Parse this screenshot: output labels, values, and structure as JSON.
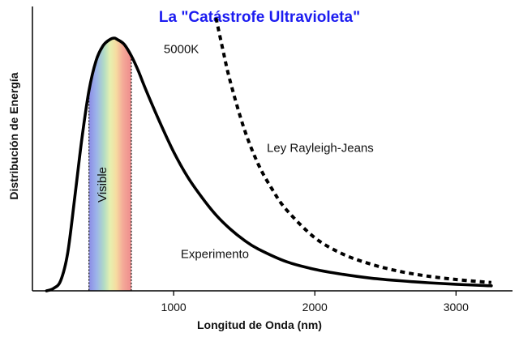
{
  "chart_data": {
    "type": "line",
    "title": "La \"Catástrofe Ultravioleta\"",
    "xlabel": "Longitud de Onda (nm)",
    "ylabel": "Distribución de Energía",
    "xlim": [
      0,
      3400
    ],
    "ylim": [
      0,
      1
    ],
    "xticks": [
      1000,
      2000,
      3000
    ],
    "xtick_labels": [
      "1000",
      "2000",
      "3000"
    ],
    "yticks_shown": false,
    "grid": false,
    "visible_band": {
      "label": "Visible",
      "range": [
        400,
        700
      ]
    },
    "series": [
      {
        "name": "Experimento",
        "style": "solid",
        "x": [
          100,
          150,
          200,
          250,
          300,
          350,
          400,
          450,
          500,
          550,
          580,
          600,
          650,
          700,
          750,
          800,
          900,
          1000,
          1100,
          1200,
          1300,
          1400,
          1500,
          1600,
          1800,
          2000,
          2200,
          2400,
          2600,
          2800,
          3000,
          3200,
          3250
        ],
        "y": [
          0.0,
          0.01,
          0.04,
          0.15,
          0.37,
          0.6,
          0.79,
          0.91,
          0.97,
          0.995,
          1.0,
          0.995,
          0.975,
          0.93,
          0.87,
          0.8,
          0.67,
          0.55,
          0.45,
          0.37,
          0.3,
          0.245,
          0.2,
          0.165,
          0.115,
          0.085,
          0.065,
          0.05,
          0.04,
          0.032,
          0.026,
          0.021,
          0.02
        ]
      },
      {
        "name": "Ley Rayleigh-Jeans",
        "style": "dashed",
        "x": [
          1300,
          1350,
          1400,
          1500,
          1600,
          1700,
          1800,
          2000,
          2200,
          2400,
          2600,
          2800,
          3000,
          3200,
          3250
        ],
        "y": [
          1.08,
          0.95,
          0.83,
          0.64,
          0.5,
          0.4,
          0.32,
          0.21,
          0.145,
          0.105,
          0.077,
          0.058,
          0.045,
          0.035,
          0.033
        ]
      }
    ],
    "annotations": [
      {
        "text": "5000K",
        "x": 930,
        "y": 0.94
      },
      {
        "text": "Ley Rayleigh-Jeans",
        "x": 1660,
        "y": 0.55
      },
      {
        "text": "Experimento",
        "x": 1050,
        "y": 0.13
      }
    ]
  }
}
